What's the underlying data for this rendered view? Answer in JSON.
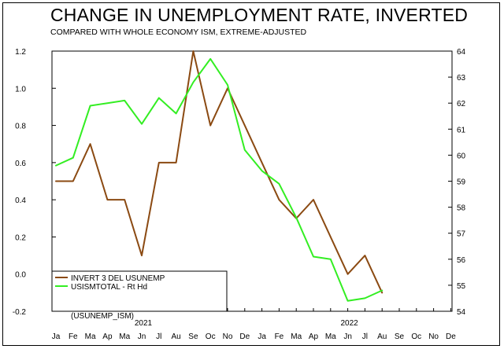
{
  "title": "CHANGE IN UNEMPLOYMENT RATE, INVERTED",
  "subtitle": "COMPARED WITH WHOLE ECONOMY ISM, EXTREME-ADJUSTED",
  "chart_data": {
    "type": "line",
    "title": "CHANGE IN UNEMPLOYMENT RATE, INVERTED",
    "subtitle": "COMPARED WITH WHOLE ECONOMY ISM, EXTREME-ADJUSTED",
    "x_month_labels": [
      "Ja",
      "Fe",
      "Ma",
      "Ap",
      "Ma",
      "Jn",
      "Jl",
      "Au",
      "Se",
      "Oc",
      "No",
      "De",
      "Ja",
      "Fe",
      "Ma",
      "Ap",
      "Ma",
      "Jn",
      "Jl",
      "Au",
      "Se",
      "Oc",
      "No",
      "De"
    ],
    "year_labels": [
      {
        "label": "2021",
        "month_index": 5
      },
      {
        "label": "2022",
        "month_index": 17
      }
    ],
    "left_axis": {
      "ylim": [
        -0.2,
        1.2
      ],
      "ticks": [
        "-0.2",
        "0.0",
        "0.2",
        "0.4",
        "0.6",
        "0.8",
        "1.0",
        "1.2"
      ]
    },
    "right_axis": {
      "ylim": [
        54,
        64
      ],
      "ticks": [
        "54",
        "55",
        "56",
        "57",
        "58",
        "59",
        "60",
        "61",
        "62",
        "63",
        "64"
      ]
    },
    "series": [
      {
        "name": "INVERT 3 DEL USUNEMP",
        "axis": "left",
        "color": "#8b4a12",
        "values": [
          0.5,
          0.5,
          0.7,
          0.4,
          0.4,
          0.1,
          0.6,
          0.6,
          1.2,
          0.8,
          1.0,
          0.8,
          0.6,
          0.4,
          0.3,
          0.4,
          0.2,
          0.0,
          0.1,
          -0.1
        ]
      },
      {
        "name": "USISMTOTAL - Rt Hd",
        "axis": "right",
        "color": "#33ee22",
        "values": [
          59.6,
          59.9,
          61.9,
          62.0,
          62.1,
          61.2,
          62.2,
          61.6,
          62.8,
          63.7,
          62.7,
          60.2,
          59.4,
          58.9,
          57.6,
          56.1,
          56.0,
          54.4,
          54.5,
          54.8
        ]
      }
    ],
    "legend": {
      "placement": "bottom-left",
      "note": "(USUNEMP_ISM)"
    },
    "grid": false
  }
}
